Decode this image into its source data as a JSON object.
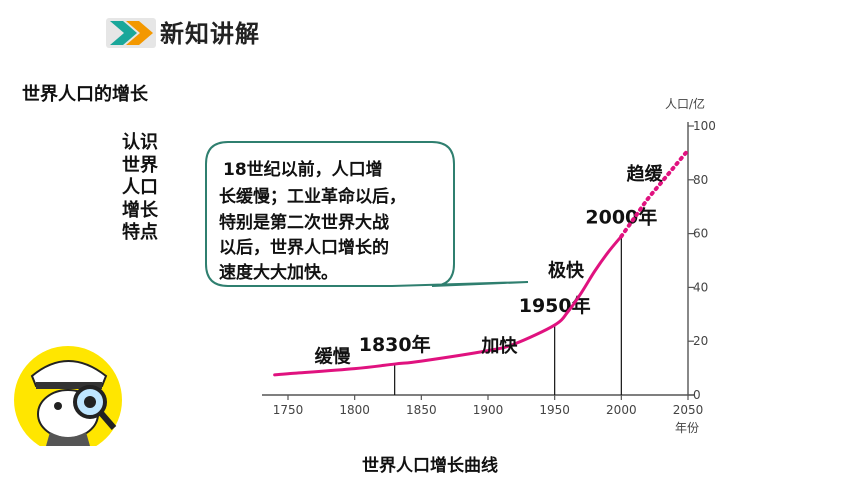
{
  "header": {
    "title": "新知讲解"
  },
  "section_title": "世界人口的增长",
  "vertical_label": "认识世界人口增长特点",
  "callout": {
    "lines": [
      "18世纪以前，人口增",
      "长缓慢；工业革命以后，",
      "特别是第二次世界大战",
      "以后，世界人口增长的",
      "速度大大加快。"
    ]
  },
  "caption": "世界人口增长曲线",
  "colors": {
    "curve": "#e0127f",
    "accent_arrow": "#f39800",
    "callout_border": "#2f7f6f",
    "axis": "#555555"
  },
  "chart_data": {
    "type": "line",
    "xlabel": "年份",
    "ylabel": "人口/亿",
    "xlim": [
      1740,
      2050
    ],
    "ylim": [
      0,
      100
    ],
    "x_ticks": [
      "1750",
      "1800",
      "1850",
      "1900",
      "1950",
      "2000",
      "2050"
    ],
    "y_ticks": [
      "0",
      "20",
      "40",
      "60",
      "80",
      "100"
    ],
    "series": [
      {
        "x": [
          1740,
          1750,
          1800,
          1830,
          1850,
          1900,
          1920,
          1950,
          1960,
          1970,
          1980,
          1990,
          2000
        ],
        "values": [
          7.5,
          7.9,
          9.8,
          11.5,
          12.6,
          16.5,
          19,
          26,
          31,
          38,
          46,
          53,
          59
        ]
      },
      {
        "style": "dotted",
        "x": [
          2000,
          2010,
          2020,
          2030,
          2040,
          2050
        ],
        "values": [
          59,
          66,
          73,
          79,
          85,
          91
        ]
      }
    ],
    "markers": [
      {
        "year": 1830,
        "label": "1830年"
      },
      {
        "year": 1950,
        "label": "1950年"
      },
      {
        "year": 2000,
        "label": "2000年"
      }
    ],
    "stages": [
      {
        "label": "缓慢",
        "x": 1770,
        "y": 12
      },
      {
        "label": "加快",
        "x": 1895,
        "y": 16
      },
      {
        "label": "极快",
        "x": 1945,
        "y": 44
      },
      {
        "label": "趋缓",
        "x": 2004,
        "y": 80
      }
    ]
  }
}
